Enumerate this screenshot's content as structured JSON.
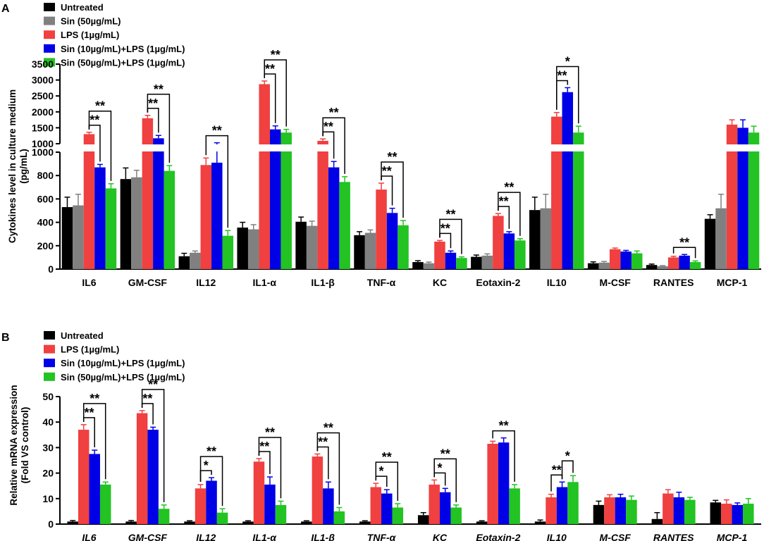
{
  "figure": {
    "panel_a_letter": "A",
    "panel_b_letter": "B"
  },
  "colors": {
    "Untreated": "#000000",
    "Sin50": "#808080",
    "LPS": "#f04040",
    "Sin10LPS": "#0000e6",
    "Sin50LPS": "#22c322"
  },
  "chart_data": [
    {
      "type": "bar",
      "panel": "A",
      "title": "",
      "ylabel": "Cytokines level in culture medium (pg/mL)",
      "ylabel_lines": [
        "Cytokines level in culture medium",
        "(pg/mL)"
      ],
      "xlabel": "",
      "grid": false,
      "legend_position": "top-left",
      "axis_break": true,
      "ylim_lower": [
        0,
        1000
      ],
      "ylim_upper": [
        1000,
        3500
      ],
      "yticks_lower": [
        "0",
        "200",
        "400",
        "600",
        "800",
        "1000"
      ],
      "yticks_upper": [
        "1000",
        "1500",
        "2000",
        "2500",
        "3000",
        "3500"
      ],
      "categories": [
        "IL6",
        "GM-CSF",
        "IL12",
        "IL1-α",
        "IL1-β",
        "TNF-α",
        "KC",
        "Eotaxin-2",
        "IL10",
        "M-CSF",
        "RANTES",
        "MCP-1"
      ],
      "series": [
        {
          "name": "Untreated",
          "key": "Untreated",
          "values": [
            530,
            770,
            110,
            355,
            405,
            290,
            60,
            105,
            505,
            50,
            35,
            430
          ],
          "errors": [
            85,
            95,
            25,
            45,
            40,
            30,
            12,
            15,
            110,
            12,
            8,
            35
          ]
        },
        {
          "name": "Sin (50µg/mL)",
          "key": "Sin50",
          "values": [
            545,
            785,
            140,
            340,
            370,
            310,
            50,
            115,
            520,
            55,
            25,
            520
          ],
          "errors": [
            95,
            60,
            15,
            40,
            40,
            25,
            10,
            15,
            120,
            10,
            5,
            120
          ]
        },
        {
          "name": "LPS (1µg/mL)",
          "key": "LPS",
          "values": [
            1300,
            1800,
            890,
            2870,
            1090,
            680,
            235,
            455,
            1850,
            170,
            100,
            1600
          ],
          "errors": [
            60,
            90,
            60,
            100,
            60,
            55,
            10,
            20,
            130,
            10,
            10,
            150
          ]
        },
        {
          "name": "Sin (10µg/mL)+LPS (1µg/mL)",
          "key": "Sin10LPS",
          "values": [
            870,
            1170,
            910,
            1450,
            870,
            480,
            140,
            305,
            2620,
            150,
            115,
            1500
          ],
          "errors": [
            25,
            90,
            120,
            110,
            50,
            40,
            15,
            15,
            140,
            10,
            10,
            250
          ]
        },
        {
          "name": "Sin (50µg/mL)+LPS (1µg/mL)",
          "key": "Sin50LPS",
          "values": [
            690,
            840,
            285,
            1350,
            745,
            375,
            95,
            245,
            1350,
            135,
            60,
            1350
          ],
          "errors": [
            40,
            45,
            45,
            100,
            45,
            40,
            10,
            15,
            200,
            20,
            10,
            200
          ]
        }
      ],
      "significance": [
        {
          "category": 0,
          "from": 2,
          "to": 3,
          "label": "**"
        },
        {
          "category": 0,
          "from": 2,
          "to": 4,
          "label": "**"
        },
        {
          "category": 1,
          "from": 2,
          "to": 3,
          "label": "**"
        },
        {
          "category": 1,
          "from": 2,
          "to": 4,
          "label": "**"
        },
        {
          "category": 2,
          "from": 2,
          "to": 4,
          "label": "**"
        },
        {
          "category": 3,
          "from": 2,
          "to": 3,
          "label": "**"
        },
        {
          "category": 3,
          "from": 2,
          "to": 4,
          "label": "**"
        },
        {
          "category": 4,
          "from": 2,
          "to": 3,
          "label": "**"
        },
        {
          "category": 4,
          "from": 2,
          "to": 4,
          "label": "**"
        },
        {
          "category": 5,
          "from": 2,
          "to": 3,
          "label": "**"
        },
        {
          "category": 5,
          "from": 2,
          "to": 4,
          "label": "**"
        },
        {
          "category": 6,
          "from": 2,
          "to": 3,
          "label": "**"
        },
        {
          "category": 6,
          "from": 2,
          "to": 4,
          "label": "**"
        },
        {
          "category": 7,
          "from": 2,
          "to": 3,
          "label": "**"
        },
        {
          "category": 7,
          "from": 2,
          "to": 4,
          "label": "**"
        },
        {
          "category": 8,
          "from": 2,
          "to": 3,
          "label": "**"
        },
        {
          "category": 8,
          "from": 2,
          "to": 4,
          "label": "*"
        },
        {
          "category": 10,
          "from": 2,
          "to": 4,
          "label": "**"
        }
      ]
    },
    {
      "type": "bar",
      "panel": "B",
      "title": "",
      "ylabel": "Relative mRNA expression (Fold VS control)",
      "ylabel_lines": [
        "Relative mRNA expression",
        "(Fold VS control)"
      ],
      "xlabel": "",
      "grid": false,
      "legend_position": "top-left",
      "ylim": [
        0,
        50
      ],
      "yticks": [
        "0",
        "10",
        "20",
        "30",
        "40",
        "50"
      ],
      "categories_italic": true,
      "categories": [
        "IL6",
        "GM-CSF",
        "IL12",
        "IL1-α",
        "IL1-β",
        "TNF-α",
        "KC",
        "Eotaxin-2",
        "IL10",
        "M-CSF",
        "RANTES",
        "MCP-1"
      ],
      "series": [
        {
          "name": "Untreated",
          "key": "Untreated",
          "values": [
            1,
            1,
            1,
            1,
            1,
            1,
            3.5,
            1,
            1,
            7.5,
            2,
            8.5
          ],
          "errors": [
            0.4,
            0.4,
            0.3,
            0.3,
            0.3,
            0.3,
            1,
            0.3,
            0.6,
            1.5,
            2.5,
            0.8
          ]
        },
        {
          "name": "LPS (1µg/mL)",
          "key": "LPS",
          "values": [
            37,
            43.5,
            14,
            24.5,
            26.5,
            14.5,
            15.5,
            31.5,
            10.5,
            10.5,
            12,
            8
          ],
          "errors": [
            2,
            1,
            1.5,
            1.2,
            1,
            1.5,
            1.8,
            1,
            1.2,
            1,
            1.5,
            1.5
          ]
        },
        {
          "name": "Sin (10µg/mL)+LPS (1µg/mL)",
          "key": "Sin10LPS",
          "values": [
            27.5,
            37,
            17,
            15.5,
            14,
            12,
            12.5,
            32,
            14.5,
            10.5,
            10.5,
            7.5
          ],
          "errors": [
            1.5,
            1,
            1.2,
            3,
            2.5,
            1.5,
            1.5,
            1.8,
            2,
            1.2,
            2,
            0.8
          ]
        },
        {
          "name": "Sin (50µg/mL)+LPS (1µg/mL)",
          "key": "Sin50LPS",
          "values": [
            15.5,
            6,
            4.5,
            7.5,
            5,
            6.5,
            6.5,
            14,
            16.5,
            9.5,
            9.5,
            8
          ],
          "errors": [
            1,
            1.5,
            1.5,
            1.5,
            1.5,
            1.5,
            1,
            1.5,
            2.5,
            1.5,
            1,
            2
          ]
        }
      ],
      "significance": [
        {
          "category": 0,
          "from": 1,
          "to": 2,
          "label": "**"
        },
        {
          "category": 0,
          "from": 1,
          "to": 3,
          "label": "**"
        },
        {
          "category": 1,
          "from": 1,
          "to": 2,
          "label": "**"
        },
        {
          "category": 1,
          "from": 1,
          "to": 3,
          "label": "**"
        },
        {
          "category": 2,
          "from": 1,
          "to": 2,
          "label": "*"
        },
        {
          "category": 2,
          "from": 1,
          "to": 3,
          "label": "**"
        },
        {
          "category": 3,
          "from": 1,
          "to": 2,
          "label": "**"
        },
        {
          "category": 3,
          "from": 1,
          "to": 3,
          "label": "**"
        },
        {
          "category": 4,
          "from": 1,
          "to": 2,
          "label": "**"
        },
        {
          "category": 4,
          "from": 1,
          "to": 3,
          "label": "**"
        },
        {
          "category": 5,
          "from": 1,
          "to": 2,
          "label": "*"
        },
        {
          "category": 5,
          "from": 1,
          "to": 3,
          "label": "**"
        },
        {
          "category": 6,
          "from": 1,
          "to": 2,
          "label": "*"
        },
        {
          "category": 6,
          "from": 1,
          "to": 3,
          "label": "**"
        },
        {
          "category": 7,
          "from": 1,
          "to": 3,
          "label": "**"
        },
        {
          "category": 8,
          "from": 1,
          "to": 2,
          "label": "**"
        },
        {
          "category": 8,
          "from": 2,
          "to": 3,
          "label": "*"
        }
      ]
    }
  ]
}
